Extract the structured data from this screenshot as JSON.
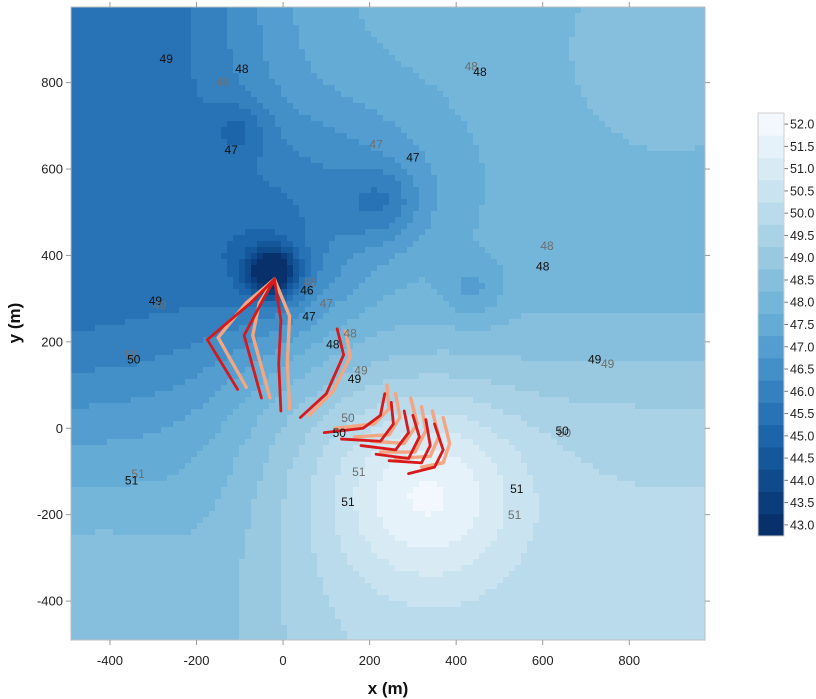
{
  "chart_data": {
    "type": "contour",
    "xlabel": "x (m)",
    "ylabel": "y (m)",
    "xlim": [
      -490,
      975
    ],
    "ylim": [
      -490,
      975
    ],
    "x_ticks": [
      -400,
      -200,
      0,
      200,
      400,
      600,
      800
    ],
    "y_ticks": [
      -400,
      -200,
      0,
      200,
      400,
      600,
      800
    ],
    "grid": false,
    "colorbar": {
      "placement": "right",
      "levels": [
        43.0,
        43.5,
        44.0,
        44.5,
        45.0,
        45.5,
        46.0,
        46.5,
        47.0,
        47.5,
        48.0,
        48.5,
        49.0,
        49.5,
        50.0,
        50.5,
        51.0,
        51.5,
        52.0
      ],
      "colors": [
        "#08306b",
        "#0b3d7c",
        "#0f4a8c",
        "#14589b",
        "#1c65aa",
        "#2873b6",
        "#3581c0",
        "#438fc8",
        "#539dd0",
        "#64abd6",
        "#74b5da",
        "#86bfdd",
        "#98c9e1",
        "#a9d2e6",
        "#b9dbeb",
        "#c9e3f0",
        "#d8ebf4",
        "#e6f2f9",
        "#f2f8fd"
      ]
    },
    "contour_labels": [
      {
        "text": "49",
        "x": -270,
        "y": 845,
        "series": "solid"
      },
      {
        "text": "48",
        "x": -95,
        "y": 822,
        "series": "solid"
      },
      {
        "text": "48",
        "x": -140,
        "y": 792,
        "series": "dashed"
      },
      {
        "text": "48",
        "x": 435,
        "y": 828,
        "series": "dashed"
      },
      {
        "text": "48",
        "x": 455,
        "y": 815,
        "series": "solid"
      },
      {
        "text": "47",
        "x": -120,
        "y": 635,
        "series": "solid"
      },
      {
        "text": "47",
        "x": 215,
        "y": 647,
        "series": "dashed"
      },
      {
        "text": "47",
        "x": 300,
        "y": 618,
        "series": "solid"
      },
      {
        "text": "48",
        "x": 610,
        "y": 413,
        "series": "dashed"
      },
      {
        "text": "48",
        "x": 600,
        "y": 365,
        "series": "solid"
      },
      {
        "text": "46",
        "x": 62,
        "y": 328,
        "series": "dashed"
      },
      {
        "text": "46",
        "x": 55,
        "y": 310,
        "series": "solid"
      },
      {
        "text": "47",
        "x": 100,
        "y": 280,
        "series": "dashed"
      },
      {
        "text": "47",
        "x": 60,
        "y": 250,
        "series": "solid"
      },
      {
        "text": "49",
        "x": -295,
        "y": 285,
        "series": "solid"
      },
      {
        "text": "49",
        "x": -285,
        "y": 275,
        "series": "dashed"
      },
      {
        "text": "48",
        "x": 155,
        "y": 210,
        "series": "dashed"
      },
      {
        "text": "48",
        "x": 115,
        "y": 185,
        "series": "solid"
      },
      {
        "text": "50",
        "x": -350,
        "y": 160,
        "series": "dashed"
      },
      {
        "text": "50",
        "x": -345,
        "y": 150,
        "series": "solid"
      },
      {
        "text": "49",
        "x": 180,
        "y": 125,
        "series": "dashed"
      },
      {
        "text": "49",
        "x": 165,
        "y": 105,
        "series": "solid"
      },
      {
        "text": "49",
        "x": 720,
        "y": 150,
        "series": "solid"
      },
      {
        "text": "49",
        "x": 750,
        "y": 140,
        "series": "dashed"
      },
      {
        "text": "50",
        "x": 150,
        "y": 15,
        "series": "dashed"
      },
      {
        "text": "50",
        "x": 130,
        "y": -20,
        "series": "solid"
      },
      {
        "text": "50",
        "x": 650,
        "y": -20,
        "series": "dashed"
      },
      {
        "text": "50",
        "x": 645,
        "y": -15,
        "series": "solid"
      },
      {
        "text": "51",
        "x": -335,
        "y": -115,
        "series": "dashed"
      },
      {
        "text": "51",
        "x": -350,
        "y": -130,
        "series": "solid"
      },
      {
        "text": "51",
        "x": 175,
        "y": -110,
        "series": "dashed"
      },
      {
        "text": "51",
        "x": 150,
        "y": -180,
        "series": "solid"
      },
      {
        "text": "51",
        "x": 540,
        "y": -150,
        "series": "solid"
      },
      {
        "text": "51",
        "x": 535,
        "y": -210,
        "series": "dashed"
      }
    ],
    "tracks": [
      {
        "color": "dark-red",
        "points": [
          [
            -20,
            345
          ],
          [
            -75,
            290
          ],
          [
            -175,
            205
          ],
          [
            -105,
            90
          ]
        ]
      },
      {
        "color": "dark-red",
        "points": [
          [
            -20,
            345
          ],
          [
            -45,
            300
          ],
          [
            -90,
            215
          ],
          [
            -50,
            70
          ]
        ]
      },
      {
        "color": "dark-red",
        "points": [
          [
            -20,
            345
          ],
          [
            -5,
            250
          ],
          [
            -10,
            150
          ],
          [
            -5,
            40
          ]
        ]
      },
      {
        "color": "dark-red",
        "points": [
          [
            125,
            230
          ],
          [
            140,
            170
          ],
          [
            100,
            80
          ],
          [
            40,
            25
          ]
        ]
      },
      {
        "color": "dark-red",
        "points": [
          [
            235,
            80
          ],
          [
            225,
            30
          ],
          [
            185,
            0
          ],
          [
            95,
            -10
          ]
        ]
      },
      {
        "color": "dark-red",
        "points": [
          [
            250,
            60
          ],
          [
            255,
            10
          ],
          [
            225,
            -30
          ],
          [
            135,
            -25
          ]
        ]
      },
      {
        "color": "dark-red",
        "points": [
          [
            280,
            40
          ],
          [
            290,
            -10
          ],
          [
            260,
            -50
          ],
          [
            180,
            -40
          ]
        ]
      },
      {
        "color": "dark-red",
        "points": [
          [
            300,
            30
          ],
          [
            315,
            -20
          ],
          [
            290,
            -70
          ],
          [
            215,
            -60
          ]
        ]
      },
      {
        "color": "dark-red",
        "points": [
          [
            330,
            20
          ],
          [
            340,
            -40
          ],
          [
            320,
            -80
          ],
          [
            245,
            -75
          ]
        ]
      },
      {
        "color": "dark-red",
        "points": [
          [
            350,
            10
          ],
          [
            370,
            -50
          ],
          [
            350,
            -90
          ],
          [
            290,
            -105
          ]
        ]
      },
      {
        "color": "salmon",
        "points": [
          [
            -20,
            345
          ],
          [
            -85,
            290
          ],
          [
            -150,
            210
          ],
          [
            -85,
            95
          ]
        ]
      },
      {
        "color": "salmon",
        "points": [
          [
            -20,
            345
          ],
          [
            -55,
            290
          ],
          [
            -70,
            215
          ],
          [
            -30,
            70
          ]
        ]
      },
      {
        "color": "salmon",
        "points": [
          [
            -20,
            345
          ],
          [
            15,
            260
          ],
          [
            10,
            150
          ],
          [
            15,
            45
          ]
        ]
      },
      {
        "color": "salmon",
        "points": [
          [
            145,
            225
          ],
          [
            155,
            165
          ],
          [
            115,
            85
          ],
          [
            60,
            30
          ]
        ]
      },
      {
        "color": "salmon",
        "points": [
          [
            240,
            100
          ],
          [
            245,
            45
          ],
          [
            210,
            10
          ],
          [
            120,
            0
          ]
        ]
      },
      {
        "color": "salmon",
        "points": [
          [
            260,
            80
          ],
          [
            270,
            25
          ],
          [
            245,
            -15
          ],
          [
            165,
            -20
          ]
        ]
      },
      {
        "color": "salmon",
        "points": [
          [
            295,
            70
          ],
          [
            310,
            10
          ],
          [
            280,
            -35
          ],
          [
            205,
            -30
          ]
        ]
      },
      {
        "color": "salmon",
        "points": [
          [
            320,
            50
          ],
          [
            330,
            -5
          ],
          [
            305,
            -55
          ],
          [
            225,
            -55
          ]
        ]
      },
      {
        "color": "salmon",
        "points": [
          [
            345,
            40
          ],
          [
            360,
            -20
          ],
          [
            340,
            -65
          ],
          [
            260,
            -70
          ]
        ]
      },
      {
        "color": "salmon",
        "points": [
          [
            370,
            25
          ],
          [
            385,
            -35
          ],
          [
            370,
            -80
          ],
          [
            320,
            -90
          ]
        ]
      }
    ]
  }
}
